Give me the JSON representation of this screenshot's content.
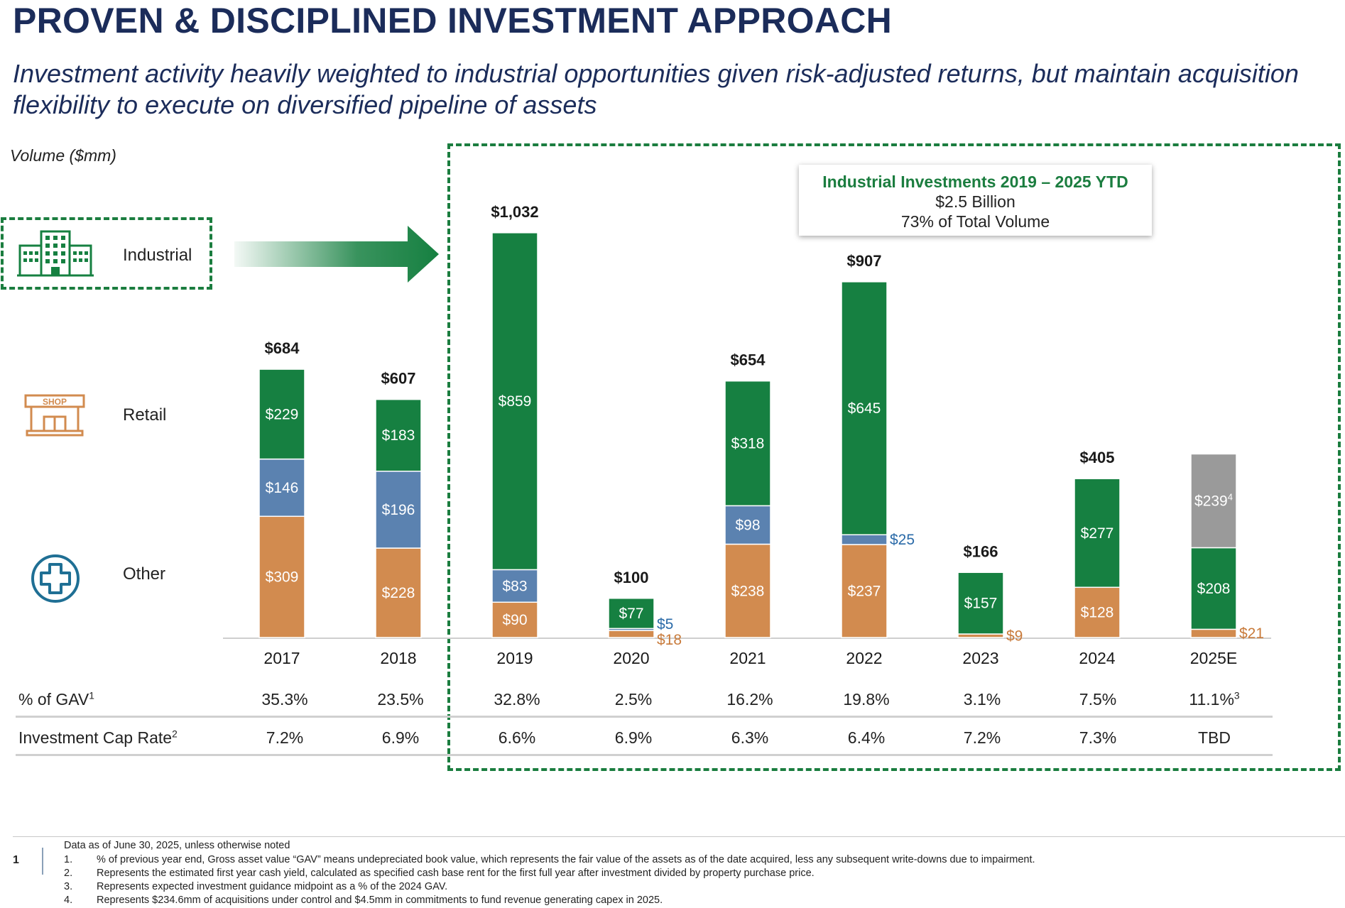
{
  "header": {
    "title": "PROVEN & DISCIPLINED INVESTMENT APPROACH",
    "subtitle": "Investment activity heavily weighted to industrial opportunities given risk-adjusted returns, but maintain acquisition flexibility to execute on diversified pipeline of assets"
  },
  "colors": {
    "industrial": "#168041",
    "retail": "#5b82b0",
    "other": "#d28b4f",
    "pending": "#9a9a9a",
    "title": "#1b2c5a",
    "other_label": "#c87a3a",
    "retail_label": "#2a6aa8"
  },
  "legend": {
    "industrial": "Industrial",
    "retail": "Retail",
    "other": "Other",
    "shop_text": "SHOP",
    "icons": {
      "industrial": "office-building-icon",
      "retail": "shop-storefront-icon",
      "other": "medical-cross-icon"
    }
  },
  "callout": {
    "title": "Industrial Investments 2019 – 2025 YTD",
    "line1": "$2.5 Billion",
    "line2": "73% of Total Volume"
  },
  "chart_data": {
    "type": "bar",
    "stacked": true,
    "ylabel": "Volume ($mm)",
    "categories": [
      "2017",
      "2018",
      "2019",
      "2020",
      "2021",
      "2022",
      "2023",
      "2024",
      "2025E"
    ],
    "series": [
      {
        "name": "Other",
        "values": [
          309,
          228,
          90,
          18,
          238,
          237,
          9,
          128,
          21
        ],
        "labels": [
          "$309",
          "$228",
          "$90",
          "$18",
          "$238",
          "$237",
          "$9",
          "$128",
          "$21"
        ]
      },
      {
        "name": "Retail",
        "values": [
          146,
          196,
          83,
          5,
          98,
          25,
          0,
          0,
          0
        ],
        "labels": [
          "$146",
          "$196",
          "$83",
          "$5",
          "$98",
          "$25",
          "",
          "",
          ""
        ]
      },
      {
        "name": "Industrial",
        "values": [
          229,
          183,
          859,
          77,
          318,
          645,
          157,
          277,
          208
        ],
        "labels": [
          "$229",
          "$183",
          "$859",
          "$77",
          "$318",
          "$645",
          "$157",
          "$277",
          "$208"
        ]
      },
      {
        "values": [
          0,
          0,
          0,
          0,
          0,
          0,
          0,
          0,
          239
        ],
        "labels": [
          "",
          "",
          "",
          "",
          "",
          "",
          "",
          "",
          "$239"
        ],
        "label_suffix": "4"
      }
    ],
    "totals": [
      "$684",
      "$607",
      "$1,032",
      "$100",
      "$654",
      "$907",
      "$166",
      "$405",
      ""
    ],
    "ylim": [
      0,
      1100
    ],
    "grid": false
  },
  "metrics": {
    "gav_label": "% of GAV",
    "gav_sup": "1",
    "gav": [
      "35.3%",
      "23.5%",
      "32.8%",
      "2.5%",
      "16.2%",
      "19.8%",
      "3.1%",
      "7.5%",
      "11.1%"
    ],
    "gav_last_sup": "3",
    "cap_label": "Investment Cap Rate",
    "cap_sup": "2",
    "cap": [
      "7.2%",
      "6.9%",
      "6.6%",
      "6.9%",
      "6.3%",
      "6.4%",
      "7.2%",
      "7.3%",
      "TBD"
    ]
  },
  "footer": {
    "page_number": "1",
    "intro": "Data as of June 30, 2025, unless otherwise noted",
    "notes": [
      {
        "num": "1.",
        "text": "% of previous year end, Gross asset value “GAV” means undepreciated book value, which represents the fair value of the assets as of the date acquired, less any subsequent write-downs due to impairment."
      },
      {
        "num": "2.",
        "text": "Represents the estimated first year cash yield, calculated as specified cash base rent for the first full year after investment divided by property purchase price."
      },
      {
        "num": "3.",
        "text": "Represents expected investment guidance midpoint as a % of the 2024 GAV."
      },
      {
        "num": "4.",
        "text": "Represents $234.6mm of acquisitions under control and $4.5mm in commitments to fund revenue generating capex in 2025."
      }
    ]
  }
}
